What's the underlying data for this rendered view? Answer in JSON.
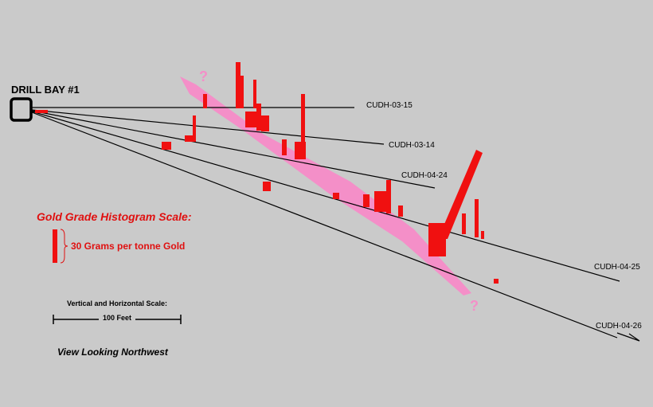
{
  "header": {
    "title": "DRILL BAY #1"
  },
  "holes": [
    {
      "label": "CUDH-03-15"
    },
    {
      "label": "CUDH-03-14"
    },
    {
      "label": "CUDH-04-24"
    },
    {
      "label": "CUDH-04-25"
    },
    {
      "label": "CUDH-04-26"
    }
  ],
  "zone": {
    "upper_mark": "?",
    "lower_mark": "?"
  },
  "legend": {
    "title": "Gold Grade Histogram Scale:",
    "scale_label": "30 Grams per tonne Gold"
  },
  "scale": {
    "title": "Vertical and Horizontal Scale:",
    "label": "100 Feet"
  },
  "view": "View Looking Northwest"
}
